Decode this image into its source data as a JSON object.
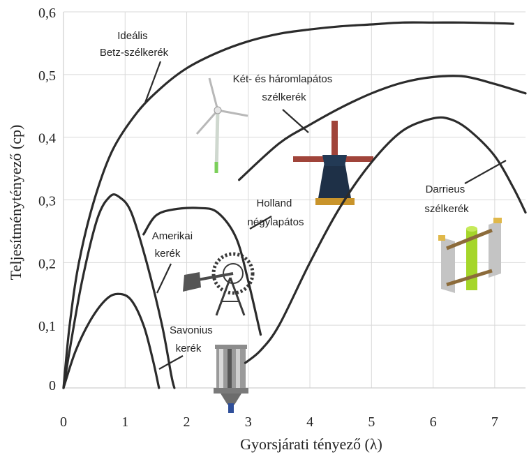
{
  "chart_data": {
    "type": "line",
    "xlabel": "Gyorsjárati tényező (λ)",
    "ylabel": "Teljesítménytényező (cp)",
    "xlim": [
      0,
      7.5
    ],
    "ylim": [
      0,
      0.6
    ],
    "grid": true,
    "x_ticks": [
      "0",
      "1",
      "2",
      "3",
      "4",
      "5",
      "6",
      "7"
    ],
    "y_ticks": [
      "0",
      "0,1",
      "0,2",
      "0,3",
      "0,4",
      "0,5",
      "0,6"
    ],
    "series": [
      {
        "name": "Ideális Betz-szélkerék",
        "label_lines": [
          "Ideális",
          "Betz-szélkerék"
        ],
        "points": [
          [
            0,
            0
          ],
          [
            0.1,
            0.1
          ],
          [
            0.25,
            0.2
          ],
          [
            0.5,
            0.3
          ],
          [
            0.8,
            0.38
          ],
          [
            1.2,
            0.44
          ],
          [
            1.6,
            0.48
          ],
          [
            2,
            0.51
          ],
          [
            2.5,
            0.535
          ],
          [
            3,
            0.553
          ],
          [
            3.5,
            0.565
          ],
          [
            4,
            0.572
          ],
          [
            4.5,
            0.577
          ],
          [
            5,
            0.58
          ],
          [
            5.5,
            0.583
          ],
          [
            6,
            0.583
          ],
          [
            6.5,
            0.583
          ],
          [
            7,
            0.582
          ],
          [
            7.3,
            0.581
          ]
        ]
      },
      {
        "name": "Két- és háromlapátos szélkerék",
        "label_lines": [
          "Két- és háromlapátos",
          "szélkerék"
        ],
        "points": [
          [
            2.85,
            0.332
          ],
          [
            3.5,
            0.39
          ],
          [
            4,
            0.42
          ],
          [
            4.5,
            0.447
          ],
          [
            5,
            0.47
          ],
          [
            5.5,
            0.487
          ],
          [
            6,
            0.496
          ],
          [
            6.5,
            0.497
          ],
          [
            7,
            0.485
          ],
          [
            7.5,
            0.47
          ]
        ]
      },
      {
        "name": "Darrieus szélkerék",
        "label_lines": [
          "Darrieus",
          "szélkerék"
        ],
        "points": [
          [
            2.95,
            0.04
          ],
          [
            3.2,
            0.06
          ],
          [
            3.5,
            0.1
          ],
          [
            4,
            0.2
          ],
          [
            4.5,
            0.29
          ],
          [
            5,
            0.36
          ],
          [
            5.5,
            0.41
          ],
          [
            6,
            0.43
          ],
          [
            6.3,
            0.428
          ],
          [
            6.6,
            0.41
          ],
          [
            7,
            0.37
          ],
          [
            7.3,
            0.32
          ],
          [
            7.5,
            0.28
          ]
        ]
      },
      {
        "name": "Holland négylapátos",
        "label_lines": [
          "Holland",
          "négylapátos"
        ],
        "points": [
          [
            1.3,
            0.245
          ],
          [
            1.5,
            0.275
          ],
          [
            1.8,
            0.285
          ],
          [
            2.2,
            0.287
          ],
          [
            2.5,
            0.28
          ],
          [
            2.8,
            0.24
          ],
          [
            3,
            0.17
          ],
          [
            3.2,
            0.085
          ]
        ]
      },
      {
        "name": "Amerikai kerék",
        "label_lines": [
          "Amerikai",
          "kerék"
        ],
        "points": [
          [
            0,
            0
          ],
          [
            0.1,
            0.06
          ],
          [
            0.3,
            0.17
          ],
          [
            0.55,
            0.27
          ],
          [
            0.75,
            0.305
          ],
          [
            0.9,
            0.305
          ],
          [
            1.1,
            0.28
          ],
          [
            1.35,
            0.2
          ],
          [
            1.6,
            0.1
          ],
          [
            1.75,
            0.02
          ],
          [
            1.8,
            0
          ]
        ]
      },
      {
        "name": "Savonius kerék",
        "label_lines": [
          "Savonius",
          "kerék"
        ],
        "points": [
          [
            0,
            0
          ],
          [
            0.2,
            0.06
          ],
          [
            0.45,
            0.11
          ],
          [
            0.7,
            0.142
          ],
          [
            0.9,
            0.15
          ],
          [
            1.1,
            0.14
          ],
          [
            1.3,
            0.1
          ],
          [
            1.45,
            0.045
          ],
          [
            1.55,
            0
          ]
        ]
      }
    ]
  },
  "icons": [
    "two-blade-turbine-icon",
    "dutch-windmill-icon",
    "american-windpump-icon",
    "darrieus-rotor-icon",
    "savonius-rotor-icon"
  ]
}
